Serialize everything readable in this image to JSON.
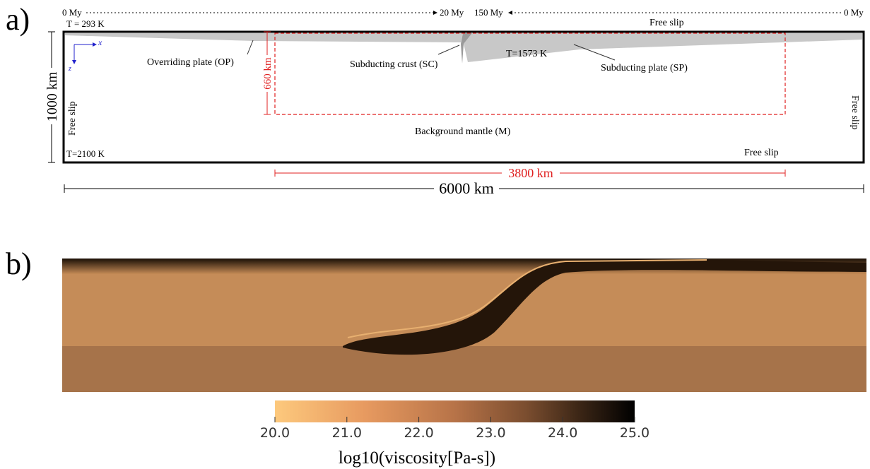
{
  "panel_a": {
    "label": "a)",
    "timeline": {
      "left_start": "0 My",
      "left_end": "20 My",
      "right_start": "150 My",
      "right_end": "0 My"
    },
    "top_temperature": "T = 293 K",
    "bottom_temperature": "T=2100 K",
    "plate_temperature": "T=1573 K",
    "top_boundary": "Free slip",
    "left_boundary": "Free slip",
    "right_boundary": "Free slip",
    "bottom_boundary": "Free slip",
    "axis_x": "x",
    "axis_z": "z",
    "overriding_plate": "Overriding plate (OP)",
    "subducting_crust": "Subducting crust (SC)",
    "subducting_plate": "Subducting plate (SP)",
    "mantle": "Background mantle (M)",
    "depth": "1000 km",
    "upper_mantle_depth": "660 km",
    "region_width": "3800 km",
    "model_width": "6000 km"
  },
  "panel_b": {
    "label": "b)",
    "colorbar": {
      "ticks": [
        "20.0",
        "21.0",
        "22.0",
        "23.0",
        "24.0",
        "25.0"
      ],
      "title": "log10(viscosity[Pa-s])"
    }
  }
}
